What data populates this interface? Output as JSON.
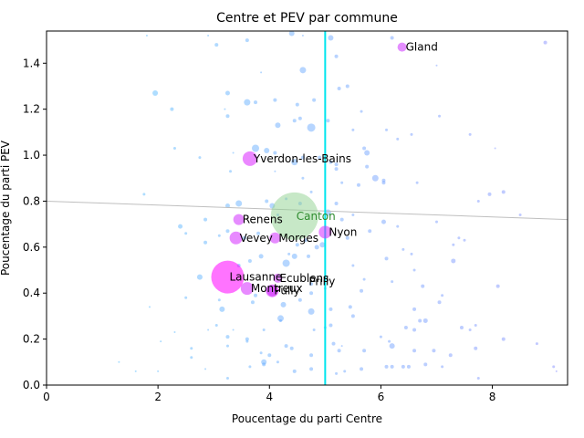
{
  "chart_data": {
    "type": "scatter",
    "title": "Centre et PEV par commune",
    "xlabel": "Poucentage du parti Centre",
    "ylabel": "Poucentage du parti PEV",
    "xlim": [
      0,
      9.35
    ],
    "ylim": [
      0,
      1.54
    ],
    "xticks": [
      0,
      2,
      4,
      6,
      8
    ],
    "xtick_labels": [
      "0",
      "2",
      "4",
      "6",
      "8"
    ],
    "yticks": [
      0,
      0.2,
      0.4,
      0.6,
      0.8,
      1.0,
      1.2,
      1.4
    ],
    "ytick_labels": [
      "0.0",
      "0.2",
      "0.4",
      "0.6",
      "0.8",
      "1.0",
      "1.2",
      "1.4"
    ],
    "grid": false,
    "vertical_line": {
      "x": 5.0,
      "color": "#00e5ee"
    },
    "trend_line": {
      "x": [
        0,
        9.35
      ],
      "y": [
        0.8,
        0.72
      ],
      "color": "#bfbfbf"
    },
    "canton": {
      "name": "Canton",
      "x": 4.45,
      "y": 0.735,
      "size": 26,
      "color": "#8fd18f",
      "label_color": "#2e8b2e"
    },
    "labeled_points": [
      {
        "name": "Gland",
        "x": 6.38,
        "y": 1.47,
        "size": 5,
        "label_dx": 4,
        "label_dy": 4
      },
      {
        "name": "Yverdon-les-Bains",
        "x": 3.65,
        "y": 0.985,
        "size": 8,
        "label_dx": 4,
        "label_dy": 4
      },
      {
        "name": "Renens",
        "x": 3.45,
        "y": 0.72,
        "size": 6,
        "label_dx": 4,
        "label_dy": 4
      },
      {
        "name": "Vevey",
        "x": 3.4,
        "y": 0.64,
        "size": 7,
        "label_dx": 4,
        "label_dy": 4
      },
      {
        "name": "Morges",
        "x": 4.1,
        "y": 0.64,
        "size": 6,
        "label_dx": 4,
        "label_dy": 4
      },
      {
        "name": "Nyon",
        "x": 5.0,
        "y": 0.665,
        "size": 7,
        "label_dx": 4,
        "label_dy": 4
      },
      {
        "name": "Lausanne",
        "x": 3.25,
        "y": 0.47,
        "size": 18,
        "label_dx": 2,
        "label_dy": 4
      },
      {
        "name": "Ecublens",
        "x": 4.15,
        "y": 0.465,
        "size": 5,
        "label_dx": 2,
        "label_dy": 4
      },
      {
        "name": "Montreux",
        "x": 3.6,
        "y": 0.42,
        "size": 7,
        "label_dx": 4,
        "label_dy": 4
      },
      {
        "name": "Pully",
        "x": 4.05,
        "y": 0.41,
        "size": 7,
        "label_dx": 2,
        "label_dy": 4
      },
      {
        "name": "Prilly",
        "x": 4.05,
        "y": 0.41,
        "size": 6,
        "label_dx": 40,
        "label_dy": -6
      }
    ],
    "points": [
      [
        1.8,
        1.52,
        1
      ],
      [
        2.9,
        1.52,
        1
      ],
      [
        3.05,
        1.48,
        2
      ],
      [
        3.6,
        1.5,
        2
      ],
      [
        4.4,
        1.53,
        3
      ],
      [
        4.6,
        1.52,
        1
      ],
      [
        5.1,
        1.51,
        3
      ],
      [
        6.2,
        1.51,
        2
      ],
      [
        8.95,
        1.49,
        2
      ],
      [
        4.6,
        1.37,
        3.5
      ],
      [
        5.2,
        1.43,
        2
      ],
      [
        7.0,
        1.39,
        1
      ],
      [
        1.95,
        1.27,
        3
      ],
      [
        2.25,
        1.2,
        2
      ],
      [
        3.25,
        1.27,
        2.5
      ],
      [
        3.6,
        1.23,
        3.5
      ],
      [
        3.75,
        1.23,
        2
      ],
      [
        4.1,
        1.24,
        2
      ],
      [
        4.5,
        1.22,
        2
      ],
      [
        4.8,
        1.24,
        2
      ],
      [
        5.25,
        1.29,
        2
      ],
      [
        5.4,
        1.3,
        2
      ],
      [
        3.85,
        1.36,
        1
      ],
      [
        3.2,
        1.2,
        1
      ],
      [
        3.25,
        1.17,
        2
      ],
      [
        4.15,
        1.13,
        3
      ],
      [
        4.45,
        1.15,
        2
      ],
      [
        4.55,
        1.16,
        2
      ],
      [
        4.75,
        1.12,
        4.5
      ],
      [
        5.05,
        1.15,
        2
      ],
      [
        5.5,
        1.11,
        1.5
      ],
      [
        5.65,
        1.19,
        1.5
      ],
      [
        6.1,
        1.11,
        1.5
      ],
      [
        7.05,
        1.17,
        1.5
      ],
      [
        7.6,
        1.09,
        1.5
      ],
      [
        8.05,
        1.03,
        1
      ],
      [
        2.3,
        1.03,
        1.5
      ],
      [
        2.75,
        0.99,
        1.5
      ],
      [
        3.35,
        1.01,
        1
      ],
      [
        3.75,
        1.03,
        4
      ],
      [
        3.95,
        1.02,
        3
      ],
      [
        4.1,
        1.01,
        2
      ],
      [
        4.45,
        0.97,
        3.5
      ],
      [
        4.6,
        0.99,
        2
      ],
      [
        4.9,
        0.99,
        2
      ],
      [
        5.1,
        0.97,
        2
      ],
      [
        5.2,
        0.96,
        2
      ],
      [
        5.75,
        1.01,
        3
      ],
      [
        6.3,
        1.07,
        1.5
      ],
      [
        6.55,
        1.09,
        1.5
      ],
      [
        5.7,
        1.03,
        2
      ],
      [
        3.3,
        0.93,
        1.5
      ],
      [
        4.1,
        0.93,
        1
      ],
      [
        4.6,
        0.9,
        1.5
      ],
      [
        4.75,
        0.84,
        1.5
      ],
      [
        5.2,
        0.94,
        2
      ],
      [
        5.3,
        0.88,
        1.5
      ],
      [
        5.6,
        0.87,
        2
      ],
      [
        5.75,
        0.95,
        2
      ],
      [
        5.9,
        0.9,
        3.5
      ],
      [
        6.05,
        0.89,
        2
      ],
      [
        6.05,
        0.88,
        2
      ],
      [
        6.65,
        0.88,
        1.5
      ],
      [
        7.75,
        0.8,
        1.5
      ],
      [
        7.95,
        0.83,
        2
      ],
      [
        8.2,
        0.84,
        2
      ],
      [
        8.5,
        0.74,
        1.5
      ],
      [
        1.75,
        0.83,
        1.5
      ],
      [
        2.4,
        0.69,
        2.5
      ],
      [
        2.85,
        0.72,
        2
      ],
      [
        3.25,
        0.78,
        2.5
      ],
      [
        3.45,
        0.79,
        3.5
      ],
      [
        3.95,
        0.8,
        2
      ],
      [
        4.05,
        0.78,
        3
      ],
      [
        4.15,
        0.74,
        1.5
      ],
      [
        4.3,
        0.81,
        1.5
      ],
      [
        4.55,
        0.79,
        2
      ],
      [
        5.05,
        0.75,
        3.5
      ],
      [
        5.2,
        0.79,
        2
      ],
      [
        5.3,
        0.72,
        2
      ],
      [
        5.5,
        0.74,
        1.5
      ],
      [
        6.05,
        0.71,
        2.5
      ],
      [
        6.3,
        0.69,
        1.5
      ],
      [
        7.0,
        0.71,
        1.5
      ],
      [
        7.5,
        0.63,
        1.5
      ],
      [
        2.5,
        0.66,
        1.5
      ],
      [
        2.85,
        0.62,
        2
      ],
      [
        3.1,
        0.65,
        1.5
      ],
      [
        3.25,
        0.67,
        2
      ],
      [
        3.55,
        0.64,
        2
      ],
      [
        3.8,
        0.66,
        2
      ],
      [
        4.5,
        0.61,
        2
      ],
      [
        4.65,
        0.63,
        2
      ],
      [
        4.85,
        0.6,
        2.5
      ],
      [
        4.95,
        0.61,
        3
      ],
      [
        5.4,
        0.64,
        2
      ],
      [
        5.8,
        0.67,
        2
      ],
      [
        6.1,
        0.55,
        2
      ],
      [
        6.4,
        0.59,
        1.5
      ],
      [
        6.55,
        0.57,
        1.5
      ],
      [
        7.3,
        0.61,
        1.5
      ],
      [
        7.4,
        0.64,
        1.5
      ],
      [
        2.75,
        0.47,
        3
      ],
      [
        3.45,
        0.52,
        2
      ],
      [
        3.65,
        0.54,
        2
      ],
      [
        3.85,
        0.56,
        2.5
      ],
      [
        4.3,
        0.53,
        4
      ],
      [
        4.45,
        0.56,
        3
      ],
      [
        4.7,
        0.56,
        2
      ],
      [
        4.75,
        0.44,
        2
      ],
      [
        5.0,
        0.42,
        1.5
      ],
      [
        5.5,
        0.52,
        1.5
      ],
      [
        5.7,
        0.46,
        1.5
      ],
      [
        6.2,
        0.45,
        1.5
      ],
      [
        6.6,
        0.5,
        1.5
      ],
      [
        7.3,
        0.54,
        2.5
      ],
      [
        8.1,
        0.43,
        2
      ],
      [
        4.35,
        0.57,
        1.5
      ],
      [
        2.5,
        0.38,
        1.5
      ],
      [
        3.1,
        0.37,
        1.5
      ],
      [
        3.15,
        0.33,
        3
      ],
      [
        3.7,
        0.36,
        2
      ],
      [
        3.75,
        0.39,
        2
      ],
      [
        4.25,
        0.35,
        3
      ],
      [
        4.55,
        0.37,
        2
      ],
      [
        4.75,
        0.4,
        2
      ],
      [
        4.75,
        0.32,
        3.5
      ],
      [
        5.1,
        0.33,
        2
      ],
      [
        5.45,
        0.34,
        2
      ],
      [
        5.65,
        0.41,
        2
      ],
      [
        6.6,
        0.33,
        2
      ],
      [
        6.7,
        0.28,
        2
      ],
      [
        6.75,
        0.43,
        2
      ],
      [
        7.1,
        0.39,
        1.5
      ],
      [
        7.05,
        0.36,
        2
      ],
      [
        6.8,
        0.28,
        2.5
      ],
      [
        4.2,
        0.29,
        3.5
      ],
      [
        1.85,
        0.34,
        1
      ],
      [
        2.3,
        0.23,
        1
      ],
      [
        2.9,
        0.24,
        1
      ],
      [
        3.05,
        0.26,
        1.5
      ],
      [
        3.25,
        0.21,
        2
      ],
      [
        3.35,
        0.24,
        1
      ],
      [
        3.6,
        0.2,
        2
      ],
      [
        3.9,
        0.24,
        1.5
      ],
      [
        4.2,
        0.28,
        1.5
      ],
      [
        4.8,
        0.24,
        1.5
      ],
      [
        5.0,
        0.25,
        1.5
      ],
      [
        5.1,
        0.26,
        2
      ],
      [
        5.5,
        0.3,
        2
      ],
      [
        6.0,
        0.21,
        1.5
      ],
      [
        6.15,
        0.19,
        1.5
      ],
      [
        6.45,
        0.25,
        2
      ],
      [
        6.6,
        0.24,
        2
      ],
      [
        7.45,
        0.25,
        2
      ],
      [
        7.6,
        0.24,
        1.5
      ],
      [
        7.7,
        0.26,
        1.5
      ],
      [
        8.2,
        0.2,
        2
      ],
      [
        2.05,
        0.19,
        1
      ],
      [
        2.6,
        0.16,
        1.5
      ],
      [
        2.6,
        0.12,
        1.5
      ],
      [
        3.25,
        0.17,
        1.5
      ],
      [
        3.6,
        0.19,
        1.5
      ],
      [
        3.85,
        0.14,
        1.5
      ],
      [
        4.0,
        0.13,
        2
      ],
      [
        4.3,
        0.17,
        2
      ],
      [
        4.4,
        0.16,
        2
      ],
      [
        4.75,
        0.13,
        2
      ],
      [
        5.15,
        0.18,
        2
      ],
      [
        5.25,
        0.15,
        2
      ],
      [
        5.7,
        0.15,
        2
      ],
      [
        6.2,
        0.17,
        3
      ],
      [
        6.6,
        0.15,
        2
      ],
      [
        6.95,
        0.15,
        2
      ],
      [
        7.25,
        0.13,
        2
      ],
      [
        7.7,
        0.16,
        2
      ],
      [
        8.8,
        0.18,
        1.5
      ],
      [
        5.3,
        0.17,
        1
      ],
      [
        1.3,
        0.1,
        1
      ],
      [
        1.6,
        0.06,
        1
      ],
      [
        2.0,
        0.06,
        1
      ],
      [
        2.85,
        0.07,
        1
      ],
      [
        3.25,
        0.03,
        1.5
      ],
      [
        3.65,
        0.08,
        1.5
      ],
      [
        3.9,
        0.09,
        2
      ],
      [
        4.15,
        0.1,
        1.5
      ],
      [
        4.45,
        0.06,
        2
      ],
      [
        4.75,
        0.07,
        2
      ],
      [
        5.2,
        0.05,
        1.5
      ],
      [
        5.35,
        0.06,
        1.5
      ],
      [
        5.65,
        0.07,
        2
      ],
      [
        6.1,
        0.08,
        2
      ],
      [
        6.2,
        0.08,
        2
      ],
      [
        6.4,
        0.08,
        2
      ],
      [
        6.5,
        0.08,
        2
      ],
      [
        6.8,
        0.09,
        2
      ],
      [
        7.1,
        0.08,
        1.5
      ],
      [
        7.75,
        0.03,
        1.5
      ],
      [
        9.1,
        0.08,
        1.5
      ],
      [
        9.15,
        0.06,
        1
      ],
      [
        3.9,
        0.1,
        3
      ]
    ]
  }
}
